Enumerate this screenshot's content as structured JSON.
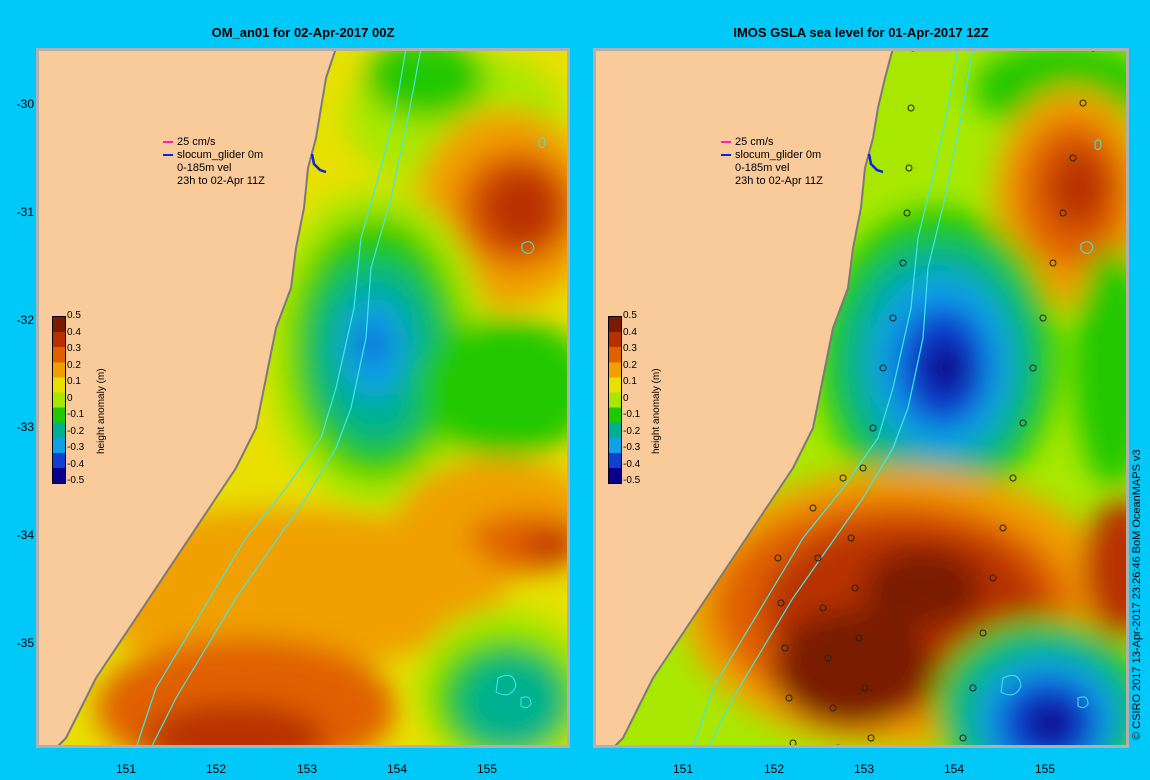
{
  "left_panel": {
    "title": "OM_an01 for 02-Apr-2017 00Z",
    "legend": [
      "25 cm/s",
      "slocum_glider 0m",
      "0-185m vel",
      "23h to 02-Apr 11Z"
    ]
  },
  "right_panel": {
    "title": "IMOS GSLA sea level  for 01-Apr-2017 12Z",
    "legend": [
      "25 cm/s",
      "slocum_glider 0m",
      "0-185m vel",
      "23h to 02-Apr 11Z"
    ]
  },
  "axes": {
    "latitude_ticks": [
      "-30",
      "-31",
      "-32",
      "-33",
      "-34",
      "-35"
    ],
    "longitude_ticks": [
      "151",
      "152",
      "153",
      "154",
      "155"
    ]
  },
  "colorbar": {
    "title": "height anomaly (m)",
    "ticks": [
      "0.5",
      "0.4",
      "0.3",
      "0.2",
      "0.1",
      "0",
      "-0.1",
      "-0.2",
      "-0.3",
      "-0.4",
      "-0.5"
    ],
    "colors": [
      "#7a1a00",
      "#b83000",
      "#e06000",
      "#f0a000",
      "#e8e000",
      "#a8e800",
      "#20c800",
      "#00b090",
      "#10a0e8",
      "#1040d0",
      "#08008a"
    ]
  },
  "credit": "© CSIRO 2017   13-Apr-2017 23:26:46 BoM OceanMAPS v3",
  "colors": {
    "land": "#f9cb9b",
    "background": "#00c8f8",
    "isobath": "#40e8e8"
  }
}
